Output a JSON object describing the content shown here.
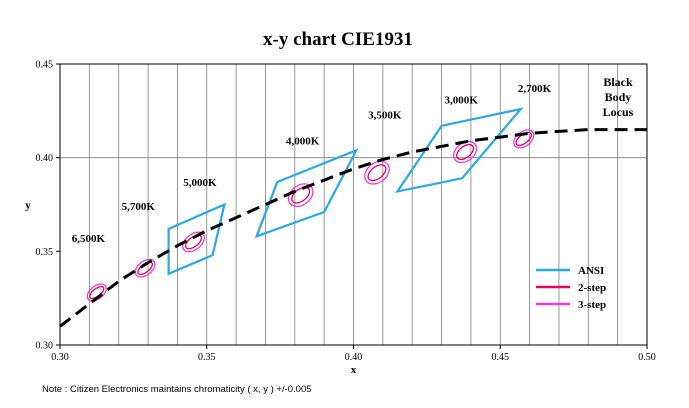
{
  "chart_data": {
    "type": "line",
    "title": "x-y chart  CIE1931",
    "xlabel": "x",
    "ylabel": "y",
    "xlim": [
      0.3,
      0.5
    ],
    "ylim": [
      0.3,
      0.45
    ],
    "x_ticks": [
      "0.30",
      "0.35",
      "0.40",
      "0.45",
      "0.50"
    ],
    "y_ticks": [
      "0.30",
      "0.35",
      "0.40",
      "0.45"
    ],
    "x_gridlines": [
      0.31,
      0.32,
      0.33,
      0.34,
      0.35,
      0.36,
      0.37,
      0.38,
      0.39,
      0.4,
      0.41,
      0.42,
      0.43,
      0.44,
      0.45,
      0.46,
      0.47,
      0.48,
      0.49
    ],
    "y_gridlines": [
      0.4
    ],
    "locus_label": [
      "Black",
      "Body",
      "Locus"
    ],
    "locus": {
      "x": [
        0.3,
        0.31,
        0.32,
        0.33,
        0.34,
        0.35,
        0.36,
        0.37,
        0.38,
        0.39,
        0.4,
        0.41,
        0.42,
        0.43,
        0.44,
        0.45,
        0.46,
        0.47,
        0.48,
        0.49,
        0.5
      ],
      "y": [
        0.31,
        0.322,
        0.334,
        0.344,
        0.353,
        0.361,
        0.368,
        0.375,
        0.382,
        0.388,
        0.394,
        0.399,
        0.403,
        0.406,
        0.409,
        0.411,
        0.413,
        0.414,
        0.415,
        0.415,
        0.415
      ]
    },
    "cct_labels": [
      {
        "text": "6,500K",
        "x": 0.304,
        "y": 0.355
      },
      {
        "text": "5,700K",
        "x": 0.321,
        "y": 0.372
      },
      {
        "text": "5,000K",
        "x": 0.342,
        "y": 0.385
      },
      {
        "text": "4,000K",
        "x": 0.377,
        "y": 0.407
      },
      {
        "text": "3,500K",
        "x": 0.405,
        "y": 0.421
      },
      {
        "text": "3,000K",
        "x": 0.431,
        "y": 0.429
      },
      {
        "text": "2,700K",
        "x": 0.456,
        "y": 0.435
      }
    ],
    "ansi_quads": [
      {
        "name": "5,000K",
        "points": [
          [
            0.337,
            0.362
          ],
          [
            0.356,
            0.375
          ],
          [
            0.352,
            0.348
          ],
          [
            0.337,
            0.338
          ]
        ]
      },
      {
        "name": "4,000K",
        "points": [
          [
            0.374,
            0.387
          ],
          [
            0.401,
            0.404
          ],
          [
            0.39,
            0.371
          ],
          [
            0.367,
            0.358
          ]
        ]
      },
      {
        "name": "3,000K",
        "points": [
          [
            0.43,
            0.417
          ],
          [
            0.457,
            0.426
          ],
          [
            0.437,
            0.389
          ],
          [
            0.415,
            0.382
          ]
        ]
      }
    ],
    "ellipses": [
      {
        "cx": 0.3125,
        "cy": 0.328,
        "step2": [
          0.0026,
          0.0045
        ],
        "step3": [
          0.004,
          0.0058
        ]
      },
      {
        "cx": 0.329,
        "cy": 0.341,
        "step2": [
          0.0028,
          0.0046
        ],
        "step3": [
          0.0043,
          0.006
        ]
      },
      {
        "cx": 0.3455,
        "cy": 0.355,
        "step2": [
          0.0032,
          0.005
        ],
        "step3": [
          0.0048,
          0.0066
        ]
      },
      {
        "cx": 0.382,
        "cy": 0.38,
        "step2": [
          0.004,
          0.0055
        ],
        "step3": [
          0.006,
          0.0072
        ]
      },
      {
        "cx": 0.408,
        "cy": 0.392,
        "step2": [
          0.004,
          0.0055
        ],
        "step3": [
          0.006,
          0.0072
        ]
      },
      {
        "cx": 0.438,
        "cy": 0.403,
        "step2": [
          0.0038,
          0.0052
        ],
        "step3": [
          0.0056,
          0.0068
        ]
      },
      {
        "cx": 0.458,
        "cy": 0.41,
        "step2": [
          0.003,
          0.0048
        ],
        "step3": [
          0.0045,
          0.006
        ]
      }
    ],
    "legend": {
      "placement": "bottom-right",
      "entries": [
        {
          "name": "ANSI",
          "color": "#29a9e0"
        },
        {
          "name": "2-step",
          "color": "#e8005a"
        },
        {
          "name": "3-step",
          "color": "#e040e0"
        }
      ]
    },
    "grid": true
  },
  "note": "Note : Citizen Electronics maintains chromaticity ( x, y ) +/-0.005",
  "colors": {
    "ansi": "#29a9e0",
    "step2": "#e8005a",
    "step3": "#e040e0",
    "locus": "#000000",
    "grid": "#7f7f7f"
  }
}
